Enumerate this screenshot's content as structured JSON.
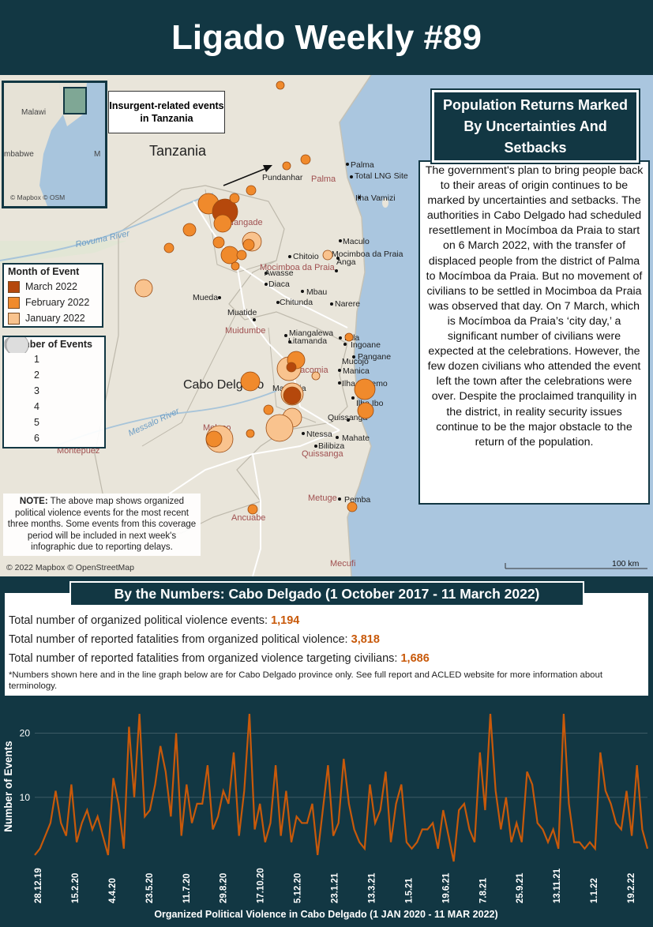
{
  "header": {
    "title": "Ligado Weekly #89"
  },
  "map": {
    "callout": "Insurgent-related events in Tanzania",
    "country_label": "Tanzania",
    "province_label": "Cabo Delgado",
    "river_label_1": "Rovuma River",
    "river_label_2": "Messalo River",
    "inset_labels": {
      "malawi": "Malawi",
      "zimbabwe": "mbabwe",
      "m": "M",
      "copyright": "© Mapbox © OSM"
    },
    "districts": [
      "Palma",
      "Nangade",
      "Mocimboa da Praia",
      "Muidumbe",
      "Macomia",
      "Meluco",
      "Quissanga",
      "Ancuabe",
      "Montepuez",
      "Metuge",
      "Mecufi",
      "Mueda"
    ],
    "towns": [
      "Palma",
      "Total LNG Site",
      "Pundanhar",
      "Ilha Vamizi",
      "Maculo",
      "Mocimboa da Praia",
      "Chitoio",
      "Anga",
      "Awasse",
      "Diaca",
      "Mbau",
      "Chitunda",
      "Narere",
      "Mueda",
      "Muatide",
      "Miangalewa",
      "Litamanda",
      "Ilala",
      "Ingoane",
      "Pangane",
      "Mucojo",
      "Manica",
      "Ilha Matemo",
      "Macomia",
      "Ilha Ibo",
      "Quissanga",
      "Ntessa",
      "Mahate",
      "Bilibiza",
      "Pemba"
    ],
    "scale_label": "100 km",
    "copyright": "© 2022 Mapbox © OpenStreetMap",
    "legend_month": {
      "title": "Month of Event",
      "items": [
        {
          "label": "March 2022",
          "color": "#b5480c"
        },
        {
          "label": "February 2022",
          "color": "#f08a2c"
        },
        {
          "label": "January 2022",
          "color": "#f9c38e"
        }
      ]
    },
    "legend_events": {
      "title": "Number of Events",
      "sizes": [
        "1",
        "2",
        "3",
        "4",
        "5",
        "6"
      ]
    },
    "note_label": "NOTE:",
    "note_text": " The above map shows organized political violence events for the most recent three months. Some events from this coverage period will be included in next week's infographic due to reporting delays."
  },
  "story": {
    "heading": "Population Returns Marked By Uncertainties And Setbacks",
    "body": "The government's plan to bring people back to their areas of origin continues to be marked by uncertainties and setbacks. The authorities in Cabo Delgado had scheduled resettlement in Mocímboa da Praia to start on 6 March 2022, with the transfer of displaced people from the district of Palma to Mocímboa da Praia. But no movement of civilians to be settled in Mocimboa da Praia was observed that day. On 7 March, which is Mocímboa da Praia’s ‘city day,’ a significant number of civilians were expected at the celebrations. However, the few dozen civilians who attended the event left the town after the celebrations were over. Despite the proclaimed tranquility in the district, in reality security issues continue to be the major obstacle to the return of the population."
  },
  "numbers": {
    "title": "By the Numbers: Cabo Delgado (1 October 2017 - 11 March 2022)",
    "events_label": "Total number of organized political violence events: ",
    "events_value": "1,194",
    "fatalities_label": "Total number of reported fatalities from organized political violence: ",
    "fatalities_value": "3,818",
    "civilian_label": "Total number of reported fatalities from organized violence targeting civilians: ",
    "civilian_value": "1,686",
    "footnote": "*Numbers shown here and in the line graph below are for Cabo Delgado province only. See full report and ACLED website for more information about terminology."
  },
  "chart_data": {
    "type": "line",
    "title": "Organized Political Violence in Cabo Delgado (1 JAN 2020 - 11 MAR 2022)",
    "xlabel": "Organized Political Violence in Cabo Delgado (1 JAN 2020 - 11 MAR 2022)",
    "ylabel": "Number of Events",
    "ylim": [
      0,
      24
    ],
    "yticks": [
      10,
      20
    ],
    "xtick_labels": [
      "28.12.19",
      "15.2.20",
      "4.4.20",
      "23.5.20",
      "11.7.20",
      "29.8.20",
      "17.10.20",
      "5.12.20",
      "23.1.21",
      "13.3.21",
      "1.5.21",
      "19.6.21",
      "7.8.21",
      "25.9.21",
      "13.11.21",
      "1.1.22",
      "19.2.22"
    ],
    "series": [
      {
        "name": "Number of Events",
        "color": "#c8590a",
        "values": [
          1,
          2,
          4,
          6,
          11,
          6,
          4,
          12,
          3,
          6,
          8,
          5,
          7,
          4,
          1,
          13,
          9,
          2,
          21,
          10,
          23,
          7,
          8,
          12,
          18,
          14,
          7,
          20,
          4,
          12,
          6,
          9,
          9,
          15,
          5,
          7,
          11,
          9,
          17,
          4,
          11,
          23,
          5,
          9,
          3,
          6,
          15,
          4,
          11,
          3,
          7,
          6,
          6,
          9,
          1,
          8,
          15,
          4,
          6,
          16,
          9,
          5,
          3,
          2,
          12,
          6,
          8,
          14,
          3,
          9,
          12,
          3,
          2,
          3,
          5,
          5,
          6,
          2,
          8,
          4,
          0,
          8,
          9,
          5,
          3,
          17,
          8,
          23,
          11,
          5,
          10,
          3,
          6,
          3,
          14,
          12,
          6,
          5,
          3,
          5,
          2,
          23,
          9,
          3,
          3,
          2,
          3,
          2,
          17,
          11,
          9,
          6,
          5,
          11,
          4,
          15,
          5,
          2
        ]
      }
    ]
  }
}
